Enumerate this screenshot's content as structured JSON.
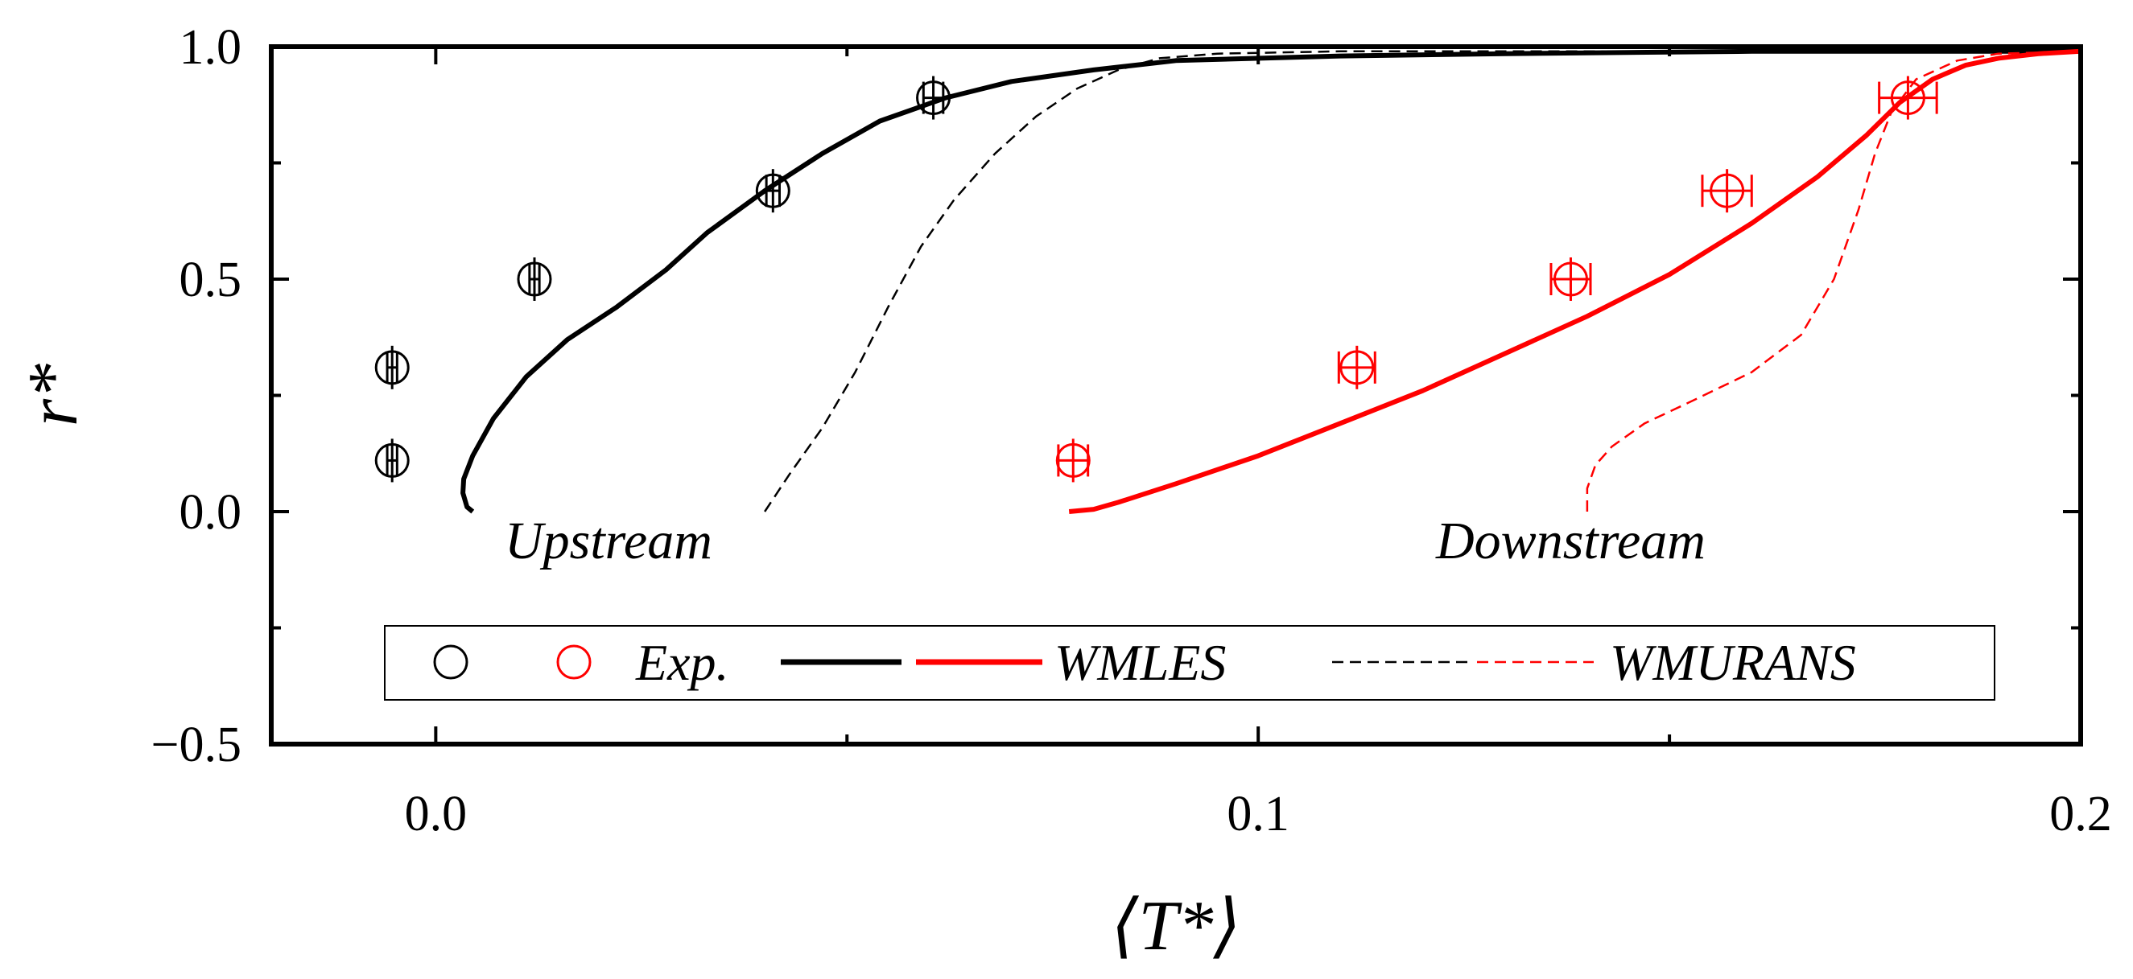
{
  "chart_data": {
    "type": "line",
    "xlabel": "⟨T*⟩",
    "ylabel": "r*",
    "xlim": [
      -0.02,
      0.2
    ],
    "ylim": [
      -0.5,
      1.0
    ],
    "x_ticks": [
      0.0,
      0.1,
      0.2
    ],
    "x_tick_labels": [
      "0.0",
      "0.1",
      "0.2"
    ],
    "x_minor_ticks": [
      0.05,
      0.15
    ],
    "y_ticks": [
      -0.5,
      0.0,
      0.5,
      1.0
    ],
    "y_tick_labels": [
      "−0.5",
      "0.0",
      "0.5",
      "1.0"
    ],
    "y_minor_ticks": [
      -0.25,
      0.25,
      0.75
    ],
    "grid": false,
    "legend_position": "bottom",
    "annotations": [
      {
        "text": "Upstream",
        "x": 0.021,
        "y": -0.1
      },
      {
        "text": "Downstream",
        "x": 0.138,
        "y": -0.1
      }
    ],
    "legend": {
      "exp_label": "Exp.",
      "wmles_label": "WMLES",
      "wmurans_label": "WMURANS"
    },
    "series": [
      {
        "name": "Exp.",
        "group": "upstream",
        "kind": "markers",
        "color": "#000000",
        "points": [
          {
            "x": -0.0053,
            "y": 0.11,
            "xerr": 0.0006
          },
          {
            "x": -0.0053,
            "y": 0.31,
            "xerr": 0.0006
          },
          {
            "x": 0.012,
            "y": 0.5,
            "xerr": 0.0006
          },
          {
            "x": 0.041,
            "y": 0.69,
            "xerr": 0.0008
          },
          {
            "x": 0.0605,
            "y": 0.89,
            "xerr": 0.0012
          }
        ]
      },
      {
        "name": "Exp.",
        "group": "downstream",
        "kind": "markers",
        "color": "#ff0000",
        "points": [
          {
            "x": 0.0775,
            "y": 0.11,
            "xerr": 0.0018
          },
          {
            "x": 0.112,
            "y": 0.31,
            "xerr": 0.0022
          },
          {
            "x": 0.138,
            "y": 0.5,
            "xerr": 0.0024
          },
          {
            "x": 0.157,
            "y": 0.69,
            "xerr": 0.003
          },
          {
            "x": 0.179,
            "y": 0.89,
            "xerr": 0.0035
          }
        ]
      },
      {
        "name": "WMLES",
        "group": "upstream",
        "kind": "solid",
        "color": "#000000",
        "x": [
          0.0045,
          0.0038,
          0.0033,
          0.0034,
          0.0045,
          0.007,
          0.011,
          0.016,
          0.022,
          0.028,
          0.033,
          0.04,
          0.047,
          0.054,
          0.062,
          0.07,
          0.08,
          0.09,
          0.11,
          0.13,
          0.16,
          0.2
        ],
        "y": [
          0.0,
          0.01,
          0.04,
          0.07,
          0.12,
          0.2,
          0.29,
          0.37,
          0.44,
          0.52,
          0.6,
          0.69,
          0.77,
          0.84,
          0.89,
          0.925,
          0.95,
          0.97,
          0.98,
          0.985,
          0.99,
          0.99
        ]
      },
      {
        "name": "WMURANS",
        "group": "upstream",
        "kind": "dashed",
        "color": "#000000",
        "x": [
          0.04,
          0.043,
          0.047,
          0.051,
          0.055,
          0.059,
          0.063,
          0.068,
          0.073,
          0.078,
          0.083,
          0.088,
          0.095,
          0.11,
          0.14,
          0.2
        ],
        "y": [
          0.0,
          0.08,
          0.18,
          0.3,
          0.44,
          0.57,
          0.67,
          0.77,
          0.85,
          0.91,
          0.95,
          0.975,
          0.985,
          0.99,
          0.99,
          0.99
        ]
      },
      {
        "name": "WMLES",
        "group": "downstream",
        "kind": "solid",
        "color": "#ff0000",
        "x": [
          0.077,
          0.08,
          0.083,
          0.09,
          0.1,
          0.11,
          0.12,
          0.13,
          0.14,
          0.15,
          0.16,
          0.168,
          0.174,
          0.178,
          0.182,
          0.186,
          0.19,
          0.195,
          0.2
        ],
        "y": [
          0.0,
          0.005,
          0.02,
          0.06,
          0.12,
          0.19,
          0.26,
          0.34,
          0.42,
          0.51,
          0.62,
          0.72,
          0.81,
          0.88,
          0.93,
          0.96,
          0.975,
          0.985,
          0.99
        ]
      },
      {
        "name": "WMURANS",
        "group": "downstream",
        "kind": "dashed",
        "color": "#ff0000",
        "x": [
          0.14,
          0.14,
          0.141,
          0.143,
          0.147,
          0.153,
          0.16,
          0.166,
          0.17,
          0.173,
          0.175,
          0.177,
          0.18,
          0.185,
          0.19,
          0.2
        ],
        "y": [
          0.0,
          0.05,
          0.1,
          0.14,
          0.19,
          0.24,
          0.3,
          0.38,
          0.5,
          0.65,
          0.77,
          0.86,
          0.93,
          0.97,
          0.985,
          0.99
        ]
      }
    ]
  }
}
